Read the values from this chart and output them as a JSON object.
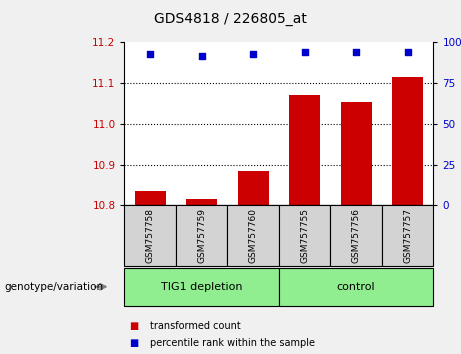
{
  "title": "GDS4818 / 226805_at",
  "samples": [
    "GSM757758",
    "GSM757759",
    "GSM757760",
    "GSM757755",
    "GSM757756",
    "GSM757757"
  ],
  "transformed_counts": [
    10.835,
    10.815,
    10.885,
    11.07,
    11.055,
    11.115
  ],
  "percentile_ranks": [
    93,
    92,
    93,
    94,
    94,
    94
  ],
  "bar_color": "#CC0000",
  "dot_color": "#0000CC",
  "ylim_left": [
    10.8,
    11.2
  ],
  "ylim_right": [
    0,
    100
  ],
  "yticks_left": [
    10.8,
    10.9,
    11.0,
    11.1,
    11.2
  ],
  "yticks_right": [
    0,
    25,
    50,
    75,
    100
  ],
  "bg_color": "#f0f0f0",
  "plot_bg": "#ffffff",
  "sample_box_color": "#d3d3d3",
  "group_color": "#90EE90",
  "legend_items": [
    {
      "label": "transformed count",
      "color": "#CC0000"
    },
    {
      "label": "percentile rank within the sample",
      "color": "#0000CC"
    }
  ],
  "genotype_label": "genotype/variation",
  "groups_def": [
    {
      "label": "TIG1 depletion",
      "start": 0,
      "end": 2
    },
    {
      "label": "control",
      "start": 3,
      "end": 5
    }
  ]
}
